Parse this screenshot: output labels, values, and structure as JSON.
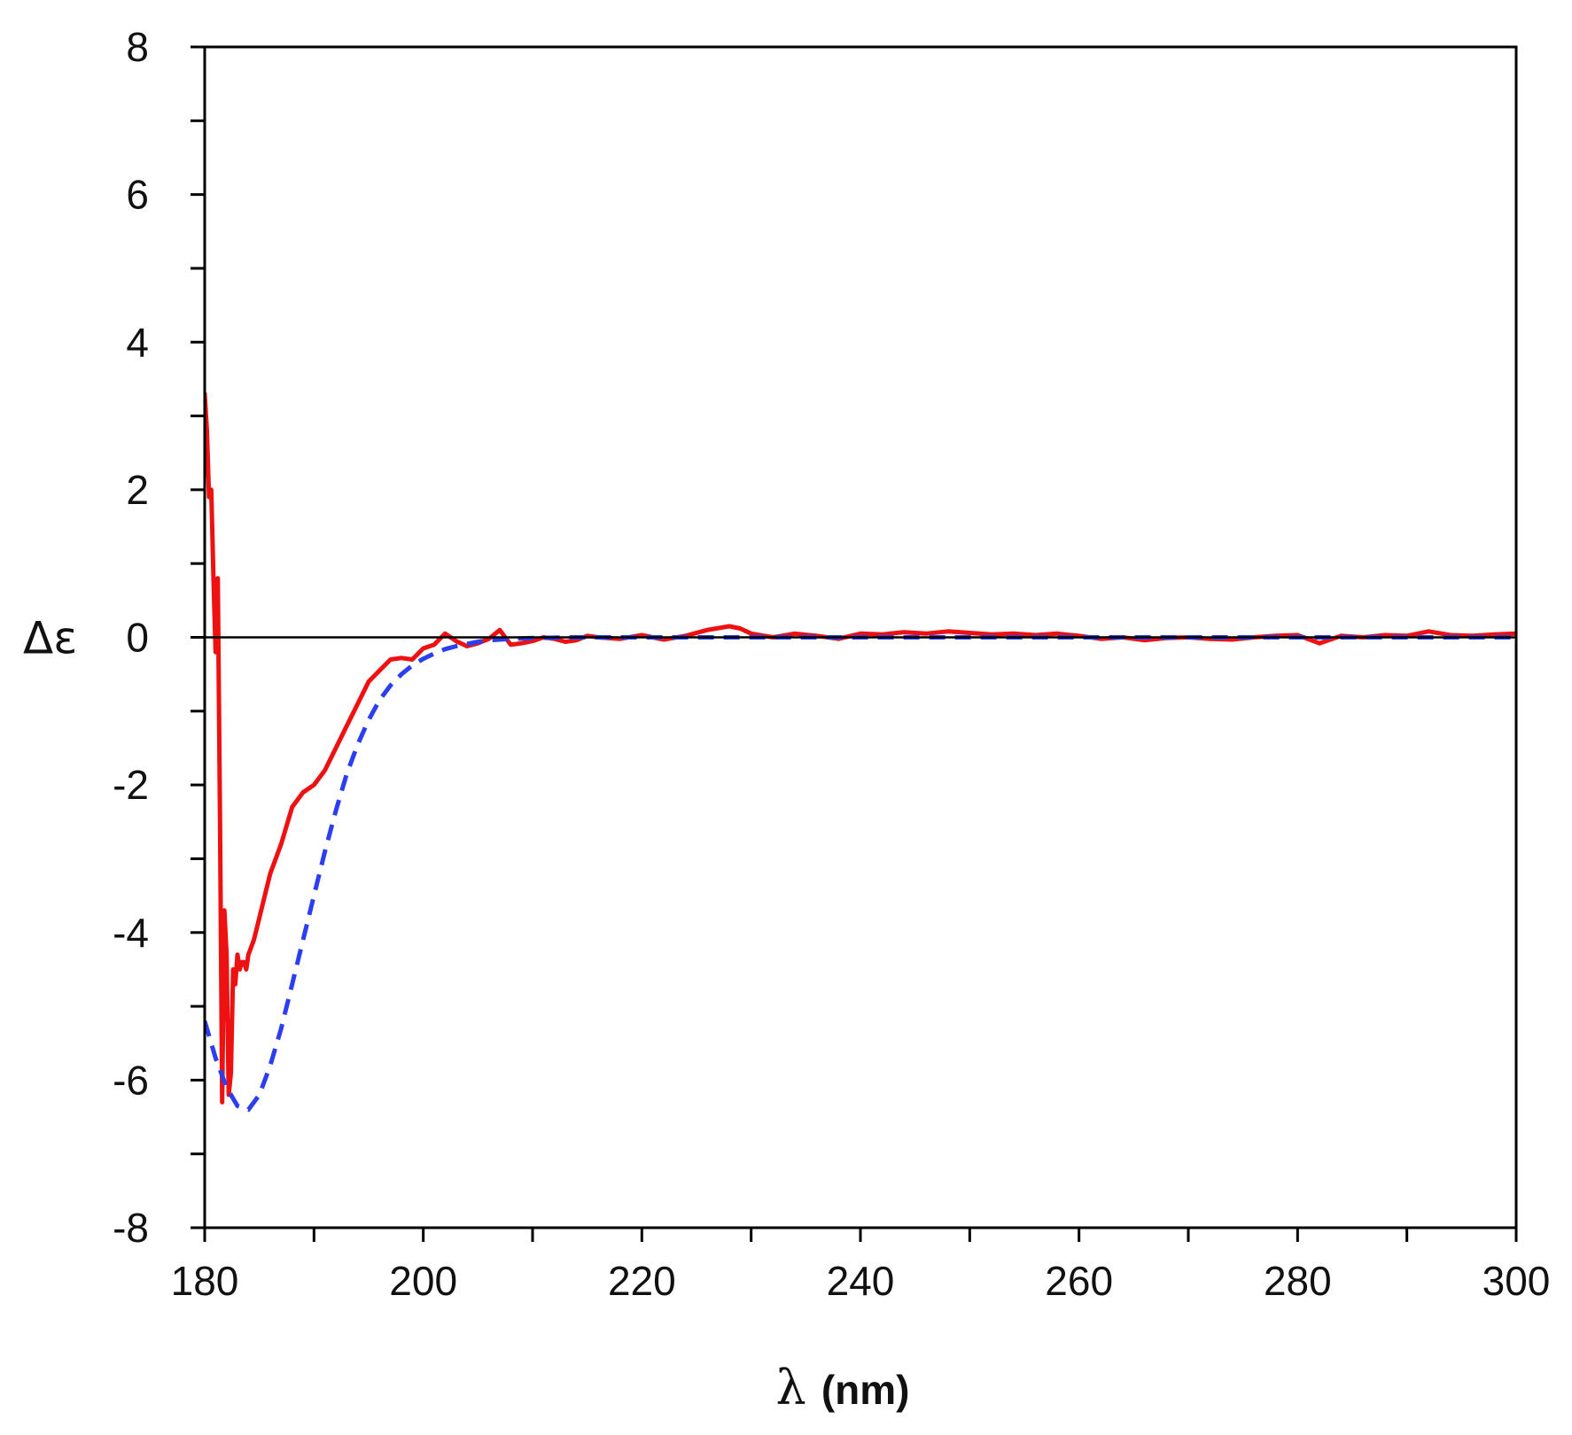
{
  "chart_data": {
    "type": "line",
    "title": "",
    "xlabel": "λ (nm)",
    "xlabel_symbol": "λ",
    "xlabel_unit": "(nm)",
    "ylabel": "Δε",
    "xlim": [
      180,
      300
    ],
    "ylim": [
      -8,
      8
    ],
    "x_ticks": [
      180,
      200,
      220,
      240,
      260,
      280,
      300
    ],
    "x_tick_labels": [
      "180",
      "200",
      "220",
      "240",
      "260",
      "280",
      "300"
    ],
    "x_minor_step": 10,
    "y_ticks": [
      -8,
      -6,
      -4,
      -2,
      0,
      2,
      4,
      6,
      8
    ],
    "y_tick_labels": [
      "-8",
      "-6",
      "-4",
      "-2",
      "0",
      "2",
      "4",
      "6",
      "8"
    ],
    "y_minor_step": 1,
    "grid": false,
    "zero_line": true,
    "series": [
      {
        "color": "#ee1111",
        "style": "solid",
        "x": [
          180.0,
          180.2,
          180.4,
          180.6,
          180.8,
          181.0,
          181.2,
          181.4,
          181.6,
          181.8,
          182.0,
          182.2,
          182.4,
          182.6,
          182.8,
          183.0,
          183.2,
          183.4,
          183.6,
          183.8,
          184.0,
          184.5,
          185.0,
          185.5,
          186.0,
          187.0,
          188.0,
          189.0,
          190.0,
          191.0,
          192.0,
          193.0,
          194.0,
          195.0,
          196.0,
          197.0,
          198.0,
          199.0,
          200.0,
          201.0,
          202.0,
          203.0,
          204.0,
          205.0,
          206.0,
          207.0,
          208.0,
          209.0,
          210.0,
          211.0,
          212.0,
          213.0,
          214.0,
          215.0,
          216.0,
          218.0,
          220.0,
          222.0,
          224.0,
          226.0,
          228.0,
          229.0,
          230.0,
          232.0,
          234.0,
          236.0,
          238.0,
          240.0,
          242.0,
          244.0,
          246.0,
          248.0,
          250.0,
          252.0,
          254.0,
          256.0,
          258.0,
          260.0,
          262.0,
          264.0,
          266.0,
          268.0,
          270.0,
          272.0,
          274.0,
          276.0,
          278.0,
          280.0,
          282.0,
          284.0,
          286.0,
          288.0,
          290.0,
          292.0,
          294.0,
          296.0,
          298.0,
          300.0
        ],
        "y": [
          3.3,
          2.8,
          1.9,
          2.0,
          0.8,
          -0.2,
          0.8,
          -2.5,
          -6.3,
          -3.7,
          -4.3,
          -6.2,
          -5.9,
          -4.5,
          -4.7,
          -4.3,
          -4.5,
          -4.4,
          -4.4,
          -4.5,
          -4.3,
          -4.1,
          -3.8,
          -3.5,
          -3.2,
          -2.8,
          -2.3,
          -2.1,
          -2.0,
          -1.8,
          -1.5,
          -1.2,
          -0.9,
          -0.6,
          -0.45,
          -0.3,
          -0.28,
          -0.3,
          -0.15,
          -0.1,
          0.05,
          -0.05,
          -0.12,
          -0.08,
          -0.02,
          0.1,
          -0.1,
          -0.08,
          -0.05,
          0.0,
          -0.02,
          -0.06,
          -0.04,
          0.02,
          0.0,
          -0.02,
          0.03,
          -0.03,
          0.02,
          0.1,
          0.15,
          0.12,
          0.05,
          0.0,
          0.05,
          0.02,
          -0.02,
          0.05,
          0.04,
          0.07,
          0.05,
          0.08,
          0.06,
          0.04,
          0.05,
          0.03,
          0.05,
          0.02,
          -0.02,
          0.0,
          -0.04,
          -0.01,
          0.0,
          -0.02,
          -0.03,
          0.0,
          0.02,
          0.03,
          -0.08,
          0.02,
          0.0,
          0.03,
          0.02,
          0.08,
          0.03,
          0.02,
          0.04,
          0.05
        ]
      },
      {
        "color": "#2b3ff0",
        "style": "dashed",
        "x": [
          180,
          181,
          182,
          183,
          184,
          185,
          186,
          187,
          188,
          189,
          190,
          191,
          192,
          193,
          194,
          195,
          196,
          197,
          198,
          199,
          200,
          201,
          202,
          203,
          204,
          205,
          206,
          207,
          208,
          209,
          210,
          212,
          214,
          216,
          218,
          220,
          225,
          230,
          240,
          250,
          260,
          270,
          280,
          290,
          300
        ],
        "y": [
          -5.2,
          -5.7,
          -6.1,
          -6.35,
          -6.4,
          -6.2,
          -5.8,
          -5.3,
          -4.7,
          -4.1,
          -3.5,
          -2.9,
          -2.35,
          -1.85,
          -1.45,
          -1.12,
          -0.85,
          -0.65,
          -0.5,
          -0.38,
          -0.29,
          -0.22,
          -0.16,
          -0.12,
          -0.09,
          -0.06,
          -0.04,
          -0.03,
          -0.02,
          -0.015,
          -0.01,
          -0.005,
          0.0,
          0.0,
          0.0,
          0.0,
          0.0,
          0.0,
          0.0,
          0.0,
          0.0,
          0.0,
          0.0,
          0.0,
          0.0
        ]
      }
    ]
  }
}
